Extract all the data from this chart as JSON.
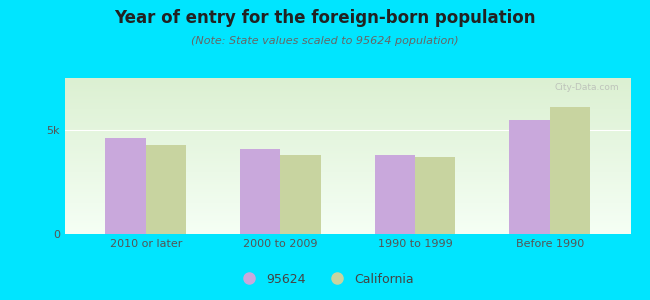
{
  "title": "Year of entry for the foreign-born population",
  "subtitle": "(Note: State values scaled to 95624 population)",
  "categories": [
    "2010 or later",
    "2000 to 2009",
    "1990 to 1999",
    "Before 1990"
  ],
  "values_95624": [
    4600,
    4100,
    3800,
    5500
  ],
  "values_california": [
    4300,
    3800,
    3700,
    6100
  ],
  "color_95624": "#c9a8dc",
  "color_california": "#c8d4a0",
  "background_outer": "#00e5ff",
  "ylim": [
    0,
    7500
  ],
  "yticks": [
    0,
    5000
  ],
  "ytick_labels": [
    "0",
    "5k"
  ],
  "bar_width": 0.3,
  "legend_label_95624": "95624",
  "legend_label_california": "California",
  "title_fontsize": 12,
  "subtitle_fontsize": 8,
  "tick_fontsize": 8,
  "legend_fontsize": 9
}
